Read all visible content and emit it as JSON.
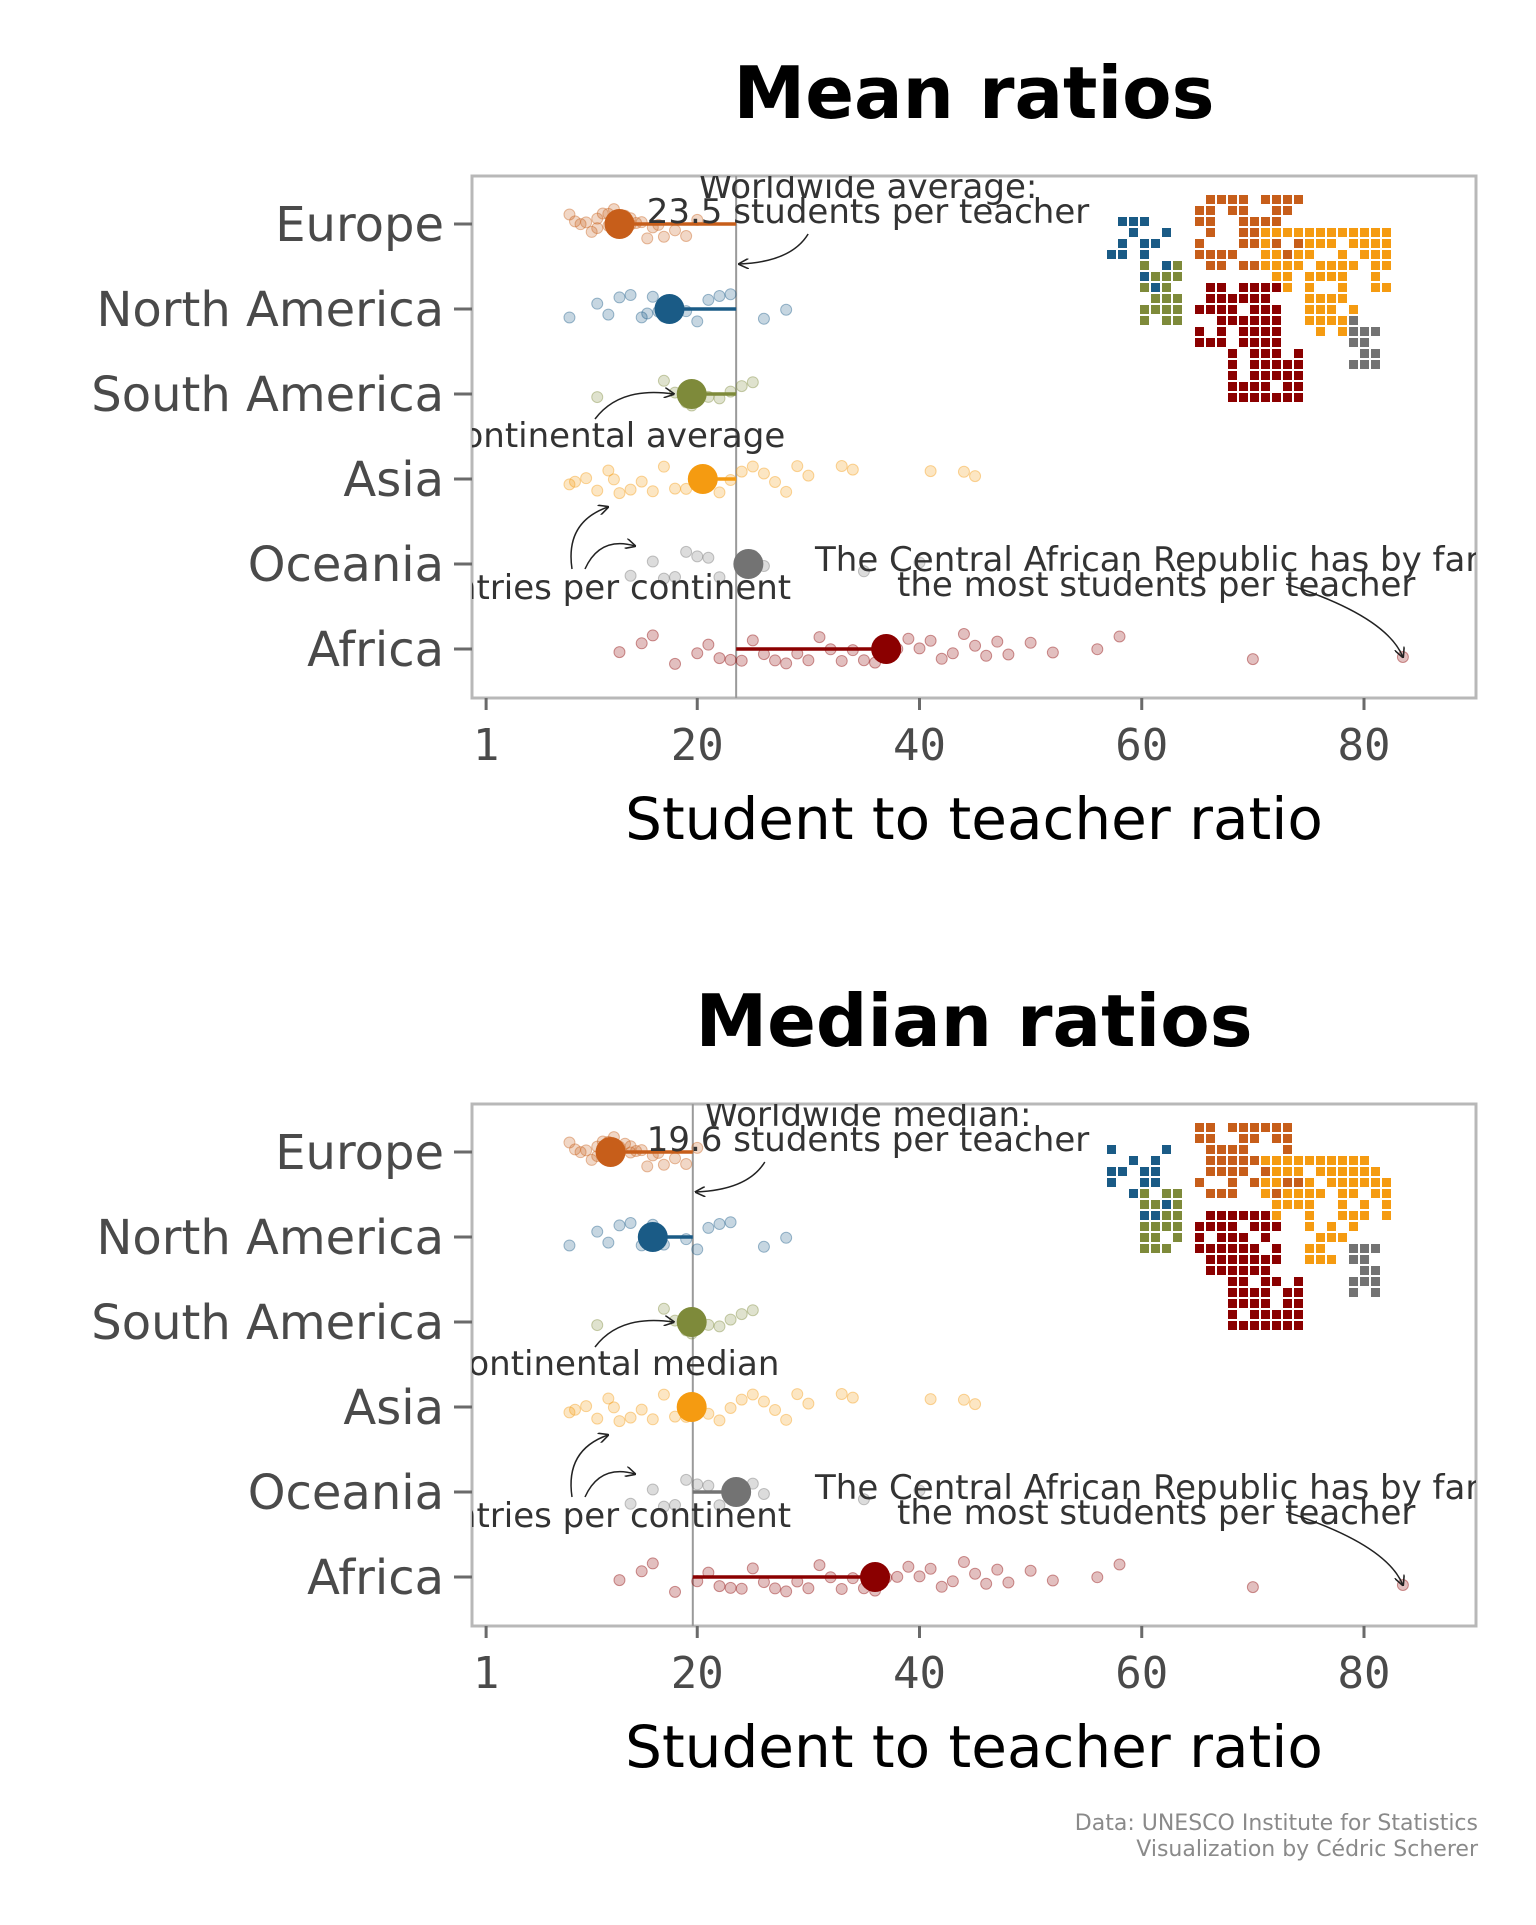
{
  "colors": {
    "Europe": "#c75e1a",
    "North America": "#1a5b86",
    "South America": "#7e8a3a",
    "Asia": "#f59b11",
    "Oceania": "#737373",
    "Africa": "#8b0000",
    "panel_border": "#b8b8b8",
    "reference_line": "#9a9a9a"
  },
  "caption": {
    "line1": "Data: UNESCO Institute for Statistics",
    "line2": "Visualization by Cédric Scherer"
  },
  "chart_data": [
    {
      "type": "scatter",
      "title": "Mean ratios",
      "xlabel": "Student to teacher ratio",
      "ylabel": "",
      "xlim": [
        0,
        90
      ],
      "xticks": [
        1,
        20,
        40,
        60,
        80
      ],
      "orientation": "horizontal",
      "categories": [
        "Europe",
        "North America",
        "South America",
        "Asia",
        "Oceania",
        "Africa"
      ],
      "reference": {
        "value": 23.5
      },
      "series": [
        {
          "name": "Europe",
          "summary": 13,
          "points": [
            8.5,
            9,
            9.5,
            10,
            10.5,
            11,
            11,
            11.5,
            12,
            12,
            12.5,
            13,
            13,
            13.5,
            14,
            14,
            14.5,
            15,
            15.5,
            16,
            16.5,
            17,
            18,
            19,
            20
          ]
        },
        {
          "name": "North America",
          "summary": 17.5,
          "points": [
            8.5,
            11,
            12,
            13,
            14,
            15,
            15.5,
            16,
            16.5,
            17,
            19,
            20,
            21,
            22,
            23,
            26,
            28
          ]
        },
        {
          "name": "South America",
          "summary": 19.5,
          "points": [
            11,
            17,
            18,
            19,
            19.5,
            20,
            21,
            22,
            23,
            24,
            25
          ]
        },
        {
          "name": "Asia",
          "summary": 20.5,
          "points": [
            8.5,
            9,
            10,
            11,
            12,
            12.5,
            13,
            14,
            15,
            16,
            17,
            18,
            19,
            20,
            21,
            22,
            23,
            24,
            25,
            26,
            27,
            28,
            29,
            30,
            33,
            34,
            41,
            44,
            45
          ]
        },
        {
          "name": "Oceania",
          "summary": 24.6,
          "points": [
            14,
            16,
            17,
            18,
            19,
            20,
            21,
            22,
            25,
            26,
            35,
            40
          ]
        },
        {
          "name": "Africa",
          "summary": 37,
          "points": [
            13,
            15,
            16,
            18,
            20,
            21,
            22,
            23,
            24,
            25,
            26,
            27,
            28,
            29,
            30,
            31,
            32,
            33,
            34,
            35,
            36,
            37,
            38,
            39,
            40,
            41,
            42,
            43,
            44,
            45,
            46,
            47,
            48,
            50,
            52,
            56,
            58,
            70,
            83.5
          ]
        }
      ],
      "annotations": [
        {
          "text_line1": "Worldwide average:",
          "text_line2": "23.5 students per teacher"
        },
        {
          "text": "Continental average"
        },
        {
          "text": "Countries per continent"
        },
        {
          "text_line1": "The Central African Republic has by far",
          "text_line2": "the most students per teacher"
        }
      ]
    },
    {
      "type": "scatter",
      "title": "Median ratios",
      "xlabel": "Student to teacher ratio",
      "ylabel": "",
      "xlim": [
        0,
        90
      ],
      "xticks": [
        1,
        20,
        40,
        60,
        80
      ],
      "orientation": "horizontal",
      "categories": [
        "Europe",
        "North America",
        "South America",
        "Asia",
        "Oceania",
        "Africa"
      ],
      "reference": {
        "value": 19.6
      },
      "series": [
        {
          "name": "Europe",
          "summary": 12.2,
          "points": [
            8.5,
            9,
            9.5,
            10,
            10.5,
            11,
            11,
            11.5,
            12,
            12,
            12.5,
            13,
            13,
            13.5,
            14,
            14,
            14.5,
            15,
            15.5,
            16,
            16.5,
            17,
            18,
            19,
            20
          ]
        },
        {
          "name": "North America",
          "summary": 16,
          "points": [
            8.5,
            11,
            12,
            13,
            14,
            15,
            15.5,
            16,
            16.5,
            17,
            19,
            20,
            21,
            22,
            23,
            26,
            28
          ]
        },
        {
          "name": "South America",
          "summary": 19.5,
          "points": [
            11,
            17,
            18,
            19,
            19.5,
            20,
            21,
            22,
            23,
            24,
            25
          ]
        },
        {
          "name": "Asia",
          "summary": 19.5,
          "points": [
            8.5,
            9,
            10,
            11,
            12,
            12.5,
            13,
            14,
            15,
            16,
            17,
            18,
            19,
            20,
            21,
            22,
            23,
            24,
            25,
            26,
            27,
            28,
            29,
            30,
            33,
            34,
            41,
            44,
            45
          ]
        },
        {
          "name": "Oceania",
          "summary": 23.5,
          "points": [
            14,
            16,
            17,
            18,
            19,
            20,
            21,
            22,
            25,
            26,
            35,
            40
          ]
        },
        {
          "name": "Africa",
          "summary": 36,
          "points": [
            13,
            15,
            16,
            18,
            20,
            21,
            22,
            23,
            24,
            25,
            26,
            27,
            28,
            29,
            30,
            31,
            32,
            33,
            34,
            35,
            36,
            37,
            38,
            39,
            40,
            41,
            42,
            43,
            44,
            45,
            46,
            47,
            48,
            50,
            52,
            56,
            58,
            70,
            83.5
          ]
        }
      ],
      "annotations": [
        {
          "text_line1": "Worldwide median:",
          "text_line2": "19.6 students per teacher"
        },
        {
          "text": "Continental median"
        },
        {
          "text": "Countries per continent"
        },
        {
          "text_line1": "The Central African Republic has by far",
          "text_line2": "the most students per teacher"
        }
      ]
    }
  ]
}
